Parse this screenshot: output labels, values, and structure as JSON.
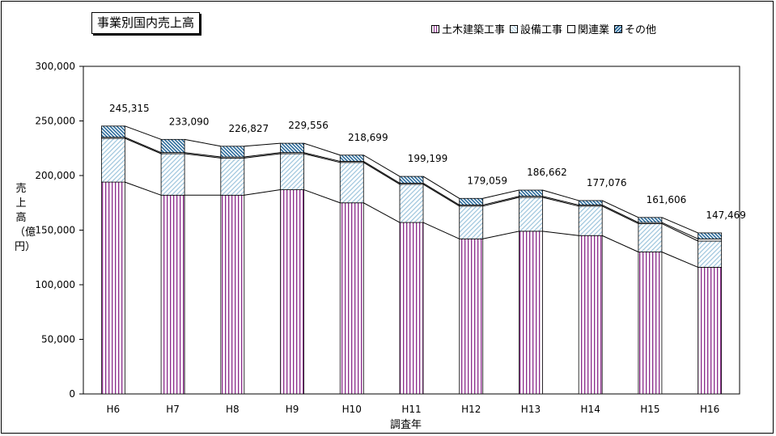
{
  "chart_data": {
    "type": "bar",
    "stacked": true,
    "title": "事業別国内売上高",
    "xlabel": "調査年",
    "ylabel": "売上高（億円）",
    "categories": [
      "H6",
      "H7",
      "H8",
      "H9",
      "H10",
      "H11",
      "H12",
      "H13",
      "H14",
      "H15",
      "H16"
    ],
    "ylim": [
      0,
      300000
    ],
    "yticks": [
      "0",
      "50,000",
      "100,000",
      "150,000",
      "200,000",
      "250,000",
      "300,000"
    ],
    "series": [
      {
        "name": "土木建築工事",
        "color": "#8a2a8a",
        "values": [
          194000,
          182000,
          182000,
          187000,
          175000,
          157000,
          142000,
          149000,
          145000,
          130000,
          116000
        ]
      },
      {
        "name": "設備工事",
        "color": "#6fa8c8",
        "values": [
          40000,
          38000,
          34000,
          33000,
          37000,
          35000,
          30000,
          31000,
          27000,
          26000,
          24000
        ]
      },
      {
        "name": "関連業",
        "color": "#000000",
        "values": [
          1000,
          1000,
          1000,
          1000,
          1000,
          1000,
          1000,
          1000,
          1000,
          1000,
          2000
        ]
      },
      {
        "name": "その他",
        "color": "#2a6a9a",
        "values": [
          10315,
          12090,
          9827,
          8556,
          5699,
          6199,
          6059,
          5662,
          4076,
          4606,
          5469
        ]
      }
    ],
    "totals": [
      245315,
      233090,
      226827,
      229556,
      218699,
      199199,
      179059,
      186662,
      177076,
      161606,
      147469
    ],
    "total_labels": [
      "245,315",
      "233,090",
      "226,827",
      "229,556",
      "218,699",
      "199,199",
      "179,059",
      "186,662",
      "177,076",
      "161,606",
      "147,469"
    ],
    "grid": false,
    "legend_position": "top-right"
  }
}
